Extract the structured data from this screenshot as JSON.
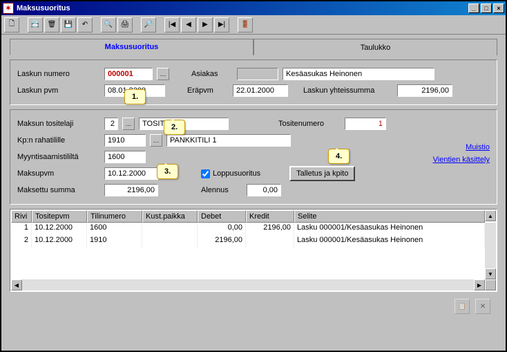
{
  "window": {
    "title": "Maksusuoritus"
  },
  "tabs": {
    "t1": "Maksusuoritus",
    "t2": "Taulukko"
  },
  "top": {
    "laskun_numero_lbl": "Laskun numero",
    "laskun_numero": "000001",
    "asiakas_lbl": "Asiakas",
    "asiakas": "Kesäasukas Heinonen",
    "laskun_pvm_lbl": "Laskun pvm",
    "laskun_pvm": "08.01.2000",
    "erapvm_lbl": "Eräpvm",
    "erapvm": "22.01.2000",
    "laskun_summa_lbl": "Laskun yhteissumma",
    "laskun_summa": "2196,00"
  },
  "mid": {
    "tositelaji_lbl": "Maksun tositelaji",
    "tositelaji": "2",
    "tositelaji_name": "TOSITTEET",
    "tositenumero_lbl": "Tositenumero",
    "tositenumero": "1",
    "rahatili_lbl": "Kp:n rahatilille",
    "rahatili": "1910",
    "rahatili_name": "PANKKITILI 1",
    "myynti_lbl": "Myyntisaamistililtä",
    "myynti": "1600",
    "maksupvm_lbl": "Maksupvm",
    "maksupvm": "10.12.2000",
    "maksettu_lbl": "Maksettu summa",
    "maksettu": "2196,00",
    "loppu_lbl": "Loppusuoritus",
    "alennus_lbl": "Alennus",
    "alennus": "0,00",
    "btn": "Talletus ja kpito",
    "link1": "Muistio",
    "link2": "Vientien käsittely"
  },
  "callouts": {
    "c1": "1.",
    "c2": "2.",
    "c3": "3.",
    "c4": "4."
  },
  "grid": {
    "headers": {
      "rivi": "Rivi",
      "tpvm": "Tositepvm",
      "tili": "Tilinumero",
      "kust": "Kust.paikka",
      "deb": "Debet",
      "kre": "Kredit",
      "sel": "Selite"
    },
    "rows": [
      {
        "rivi": "1",
        "tpvm": "10.12.2000",
        "tili": "1600",
        "kust": "",
        "deb": "0,00",
        "kre": "2196,00",
        "sel": "Lasku 000001/Kesäasukas Heinonen"
      },
      {
        "rivi": "2",
        "tpvm": "10.12.2000",
        "tili": "1910",
        "kust": "",
        "deb": "2196,00",
        "kre": "",
        "sel": "Lasku 000001/Kesäasukas Heinonen"
      }
    ]
  },
  "colors": {
    "accent": "#0000ff",
    "titlebar1": "#000080",
    "titlebar2": "#1084d0",
    "callout_bg": "#ffffcc"
  }
}
